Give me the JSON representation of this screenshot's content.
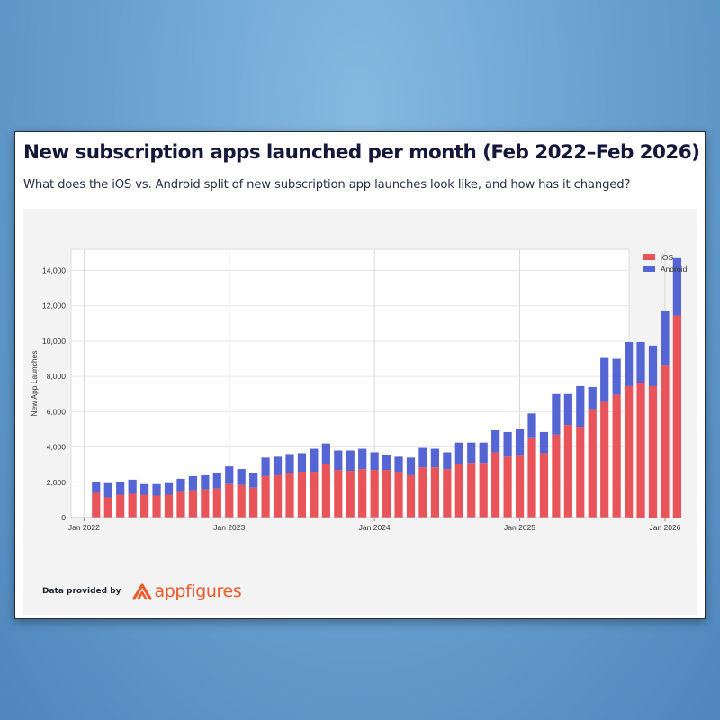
{
  "header": {
    "title": "New subscription apps launched per month (Feb 2022–Feb 2026)",
    "subtitle": "What does the iOS vs. Android split of new subscription app launches look like, and how has it changed?"
  },
  "footer": {
    "credit_label": "Data provided by",
    "brand_name": "appfigures",
    "brand_color": "#ef5a2a"
  },
  "chart_data": {
    "type": "bar",
    "stacked": true,
    "categories": [
      "2022-02",
      "2022-03",
      "2022-04",
      "2022-05",
      "2022-06",
      "2022-07",
      "2022-08",
      "2022-09",
      "2022-10",
      "2022-11",
      "2022-12",
      "2023-01",
      "2023-02",
      "2023-03",
      "2023-04",
      "2023-05",
      "2023-06",
      "2023-07",
      "2023-08",
      "2023-09",
      "2023-10",
      "2023-11",
      "2023-12",
      "2024-01",
      "2024-02",
      "2024-03",
      "2024-04",
      "2024-05",
      "2024-06",
      "2024-07",
      "2024-08",
      "2024-09",
      "2024-10",
      "2024-11",
      "2024-12",
      "2025-01",
      "2025-02",
      "2025-03",
      "2025-04",
      "2025-05",
      "2025-06",
      "2025-07",
      "2025-08",
      "2025-09",
      "2025-10",
      "2025-11",
      "2025-12",
      "2026-01",
      "2026-02"
    ],
    "series": [
      {
        "name": "iOS",
        "color": "#e8545a",
        "values": [
          1400,
          1150,
          1300,
          1350,
          1300,
          1250,
          1300,
          1450,
          1550,
          1600,
          1650,
          1900,
          1850,
          1700,
          2350,
          2400,
          2550,
          2600,
          2600,
          3050,
          2700,
          2650,
          2750,
          2700,
          2700,
          2600,
          2400,
          2850,
          2850,
          2750,
          3050,
          3100,
          3100,
          3700,
          3450,
          3500,
          4500,
          3650,
          4700,
          5250,
          5150,
          6150,
          6550,
          6950,
          7450,
          7650,
          7450,
          8600,
          11450
        ]
      },
      {
        "name": "Android",
        "color": "#5565d3",
        "values": [
          600,
          800,
          700,
          800,
          600,
          650,
          650,
          750,
          800,
          800,
          900,
          1000,
          900,
          800,
          1050,
          1050,
          1050,
          1050,
          1300,
          1150,
          1100,
          1150,
          1150,
          1000,
          850,
          850,
          1000,
          1100,
          1050,
          950,
          1200,
          1150,
          1150,
          1250,
          1400,
          1500,
          1400,
          1200,
          2300,
          1750,
          2300,
          1250,
          2500,
          2050,
          2500,
          2300,
          2300,
          3100,
          3250
        ]
      }
    ],
    "x_tick_labels": [
      "Jan 2022",
      "Jan 2023",
      "Jan 2024",
      "Jan 2025",
      "Jan 2026"
    ],
    "x_tick_dates": [
      "2022-01",
      "2023-01",
      "2024-01",
      "2025-01",
      "2026-01"
    ],
    "y_ticks": [
      0,
      2000,
      4000,
      6000,
      8000,
      10000,
      12000,
      14000
    ],
    "y_tick_labels": [
      "0",
      "2,000",
      "4,000",
      "6,000",
      "8,000",
      "10,000",
      "12,000",
      "14,000"
    ],
    "ylim": [
      0,
      15200
    ],
    "xlabel": "",
    "ylabel": "New App Launches",
    "grid": true,
    "legend_position": "top-right",
    "plot_background": "#ffffff"
  }
}
